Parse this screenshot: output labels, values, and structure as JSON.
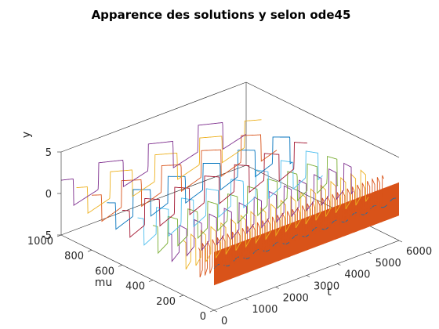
{
  "chart_data": {
    "type": "line",
    "projection": "3d",
    "title": "Apparence des solutions y selon ode45",
    "xlabel": "t",
    "ylabel": "mu",
    "zlabel": "y",
    "xlim": [
      0,
      6000
    ],
    "ylim": [
      0,
      1000
    ],
    "zlim": [
      -5,
      5
    ],
    "x_ticks": [
      "0",
      "1000",
      "2000",
      "3000",
      "4000",
      "5000",
      "6000"
    ],
    "y_ticks": [
      "0",
      "200",
      "400",
      "600",
      "800",
      "1000"
    ],
    "z_ticks": [
      "-5",
      "0",
      "5"
    ],
    "grid": false,
    "box": true,
    "mu_values": [
      0,
      100,
      200,
      300,
      400,
      500,
      600,
      700,
      800,
      900,
      1000
    ],
    "series_colors": [
      "#0072BD",
      "#D95319",
      "#EDB120",
      "#7E2F8E",
      "#77AC30",
      "#4DBEEE",
      "#A2142F"
    ],
    "series_description": [
      {
        "mu": 0,
        "waveform": "harmonic",
        "period_t": 630,
        "amplitude": 2.0,
        "t_end": 6000
      },
      {
        "mu": 100,
        "waveform": "relaxation",
        "period_t": 162,
        "amplitude": 2.0,
        "t_end": 6000
      },
      {
        "mu": 200,
        "waveform": "relaxation",
        "period_t": 324,
        "amplitude": 2.0,
        "t_end": 6000
      },
      {
        "mu": 300,
        "waveform": "relaxation",
        "period_t": 485,
        "amplitude": 2.0,
        "t_end": 6000
      },
      {
        "mu": 400,
        "waveform": "relaxation",
        "period_t": 646,
        "amplitude": 2.0,
        "t_end": 6000
      },
      {
        "mu": 500,
        "waveform": "relaxation",
        "period_t": 808,
        "amplitude": 2.0,
        "t_end": 6000
      },
      {
        "mu": 600,
        "waveform": "relaxation",
        "period_t": 969,
        "amplitude": 2.0,
        "t_end": 6000
      },
      {
        "mu": 700,
        "waveform": "relaxation",
        "period_t": 1131,
        "amplitude": 2.0,
        "t_end": 6000
      },
      {
        "mu": 800,
        "waveform": "relaxation",
        "period_t": 1292,
        "amplitude": 2.0,
        "t_end": 6000
      },
      {
        "mu": 900,
        "waveform": "relaxation",
        "period_t": 1454,
        "amplitude": 2.0,
        "t_end": 6000
      },
      {
        "mu": 1000,
        "waveform": "relaxation",
        "period_t": 1615,
        "amplitude": 2.0,
        "t_end": 6000
      }
    ]
  }
}
